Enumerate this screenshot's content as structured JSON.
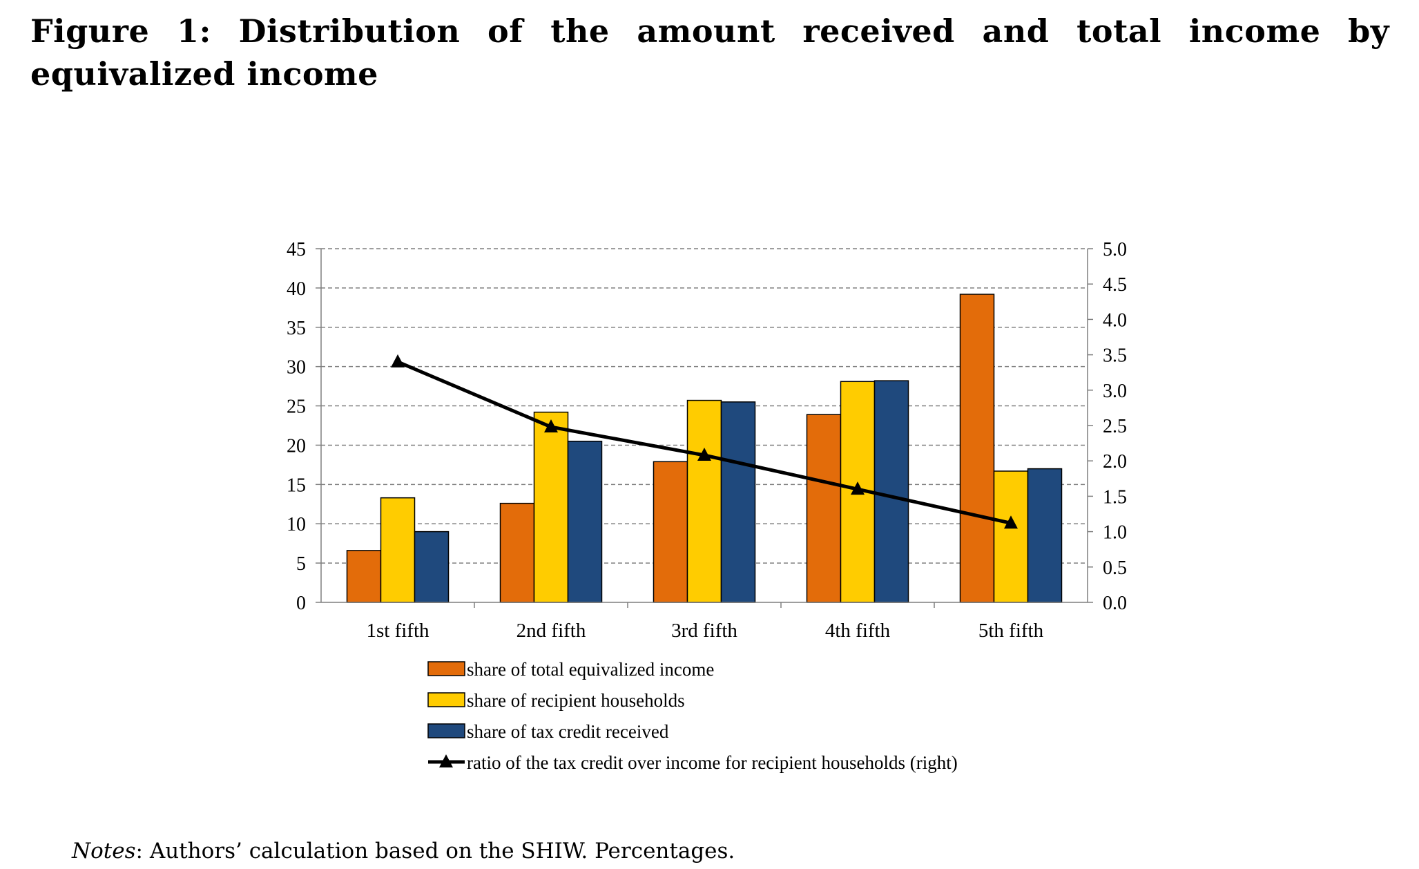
{
  "figure": {
    "title": "Figure 1: Distribution of the amount received and total income by equivalized income",
    "notes_label": "Notes",
    "notes_text": ": Authors’ calculation based on the SHIW. Percentages."
  },
  "chart_data": {
    "type": "bar",
    "title": "",
    "xlabel": "",
    "ylabel": "",
    "categories": [
      "1st fifth",
      "2nd fifth",
      "3rd fifth",
      "4th fifth",
      "5th fifth"
    ],
    "ylim": [
      0,
      45
    ],
    "yticks": [
      "0",
      "5",
      "10",
      "15",
      "20",
      "25",
      "30",
      "35",
      "40",
      "45"
    ],
    "y2lim": [
      0,
      5
    ],
    "y2ticks": [
      "0.0",
      "0.5",
      "1.0",
      "1.5",
      "2.0",
      "2.5",
      "3.0",
      "3.5",
      "4.0",
      "4.5",
      "5.0"
    ],
    "grid": true,
    "series": [
      {
        "name": "share of total equivalized income",
        "kind": "bar",
        "axis": "left",
        "color": "#E36C0A",
        "values": [
          6.6,
          12.6,
          17.9,
          23.9,
          39.2
        ]
      },
      {
        "name": "share of recipient households",
        "kind": "bar",
        "axis": "left",
        "color": "#FFCC00",
        "values": [
          13.3,
          24.2,
          25.7,
          28.1,
          16.7
        ]
      },
      {
        "name": "share of tax credit received",
        "kind": "bar",
        "axis": "left",
        "color": "#1F497D",
        "values": [
          9.0,
          20.5,
          25.5,
          28.2,
          17.0
        ]
      },
      {
        "name": "ratio of the tax credit over income for recipient households (right)",
        "kind": "line",
        "axis": "right",
        "color": "#000000",
        "marker": "triangle",
        "values": [
          3.4,
          2.48,
          2.08,
          1.6,
          1.12
        ]
      }
    ],
    "legend_position": "bottom"
  }
}
